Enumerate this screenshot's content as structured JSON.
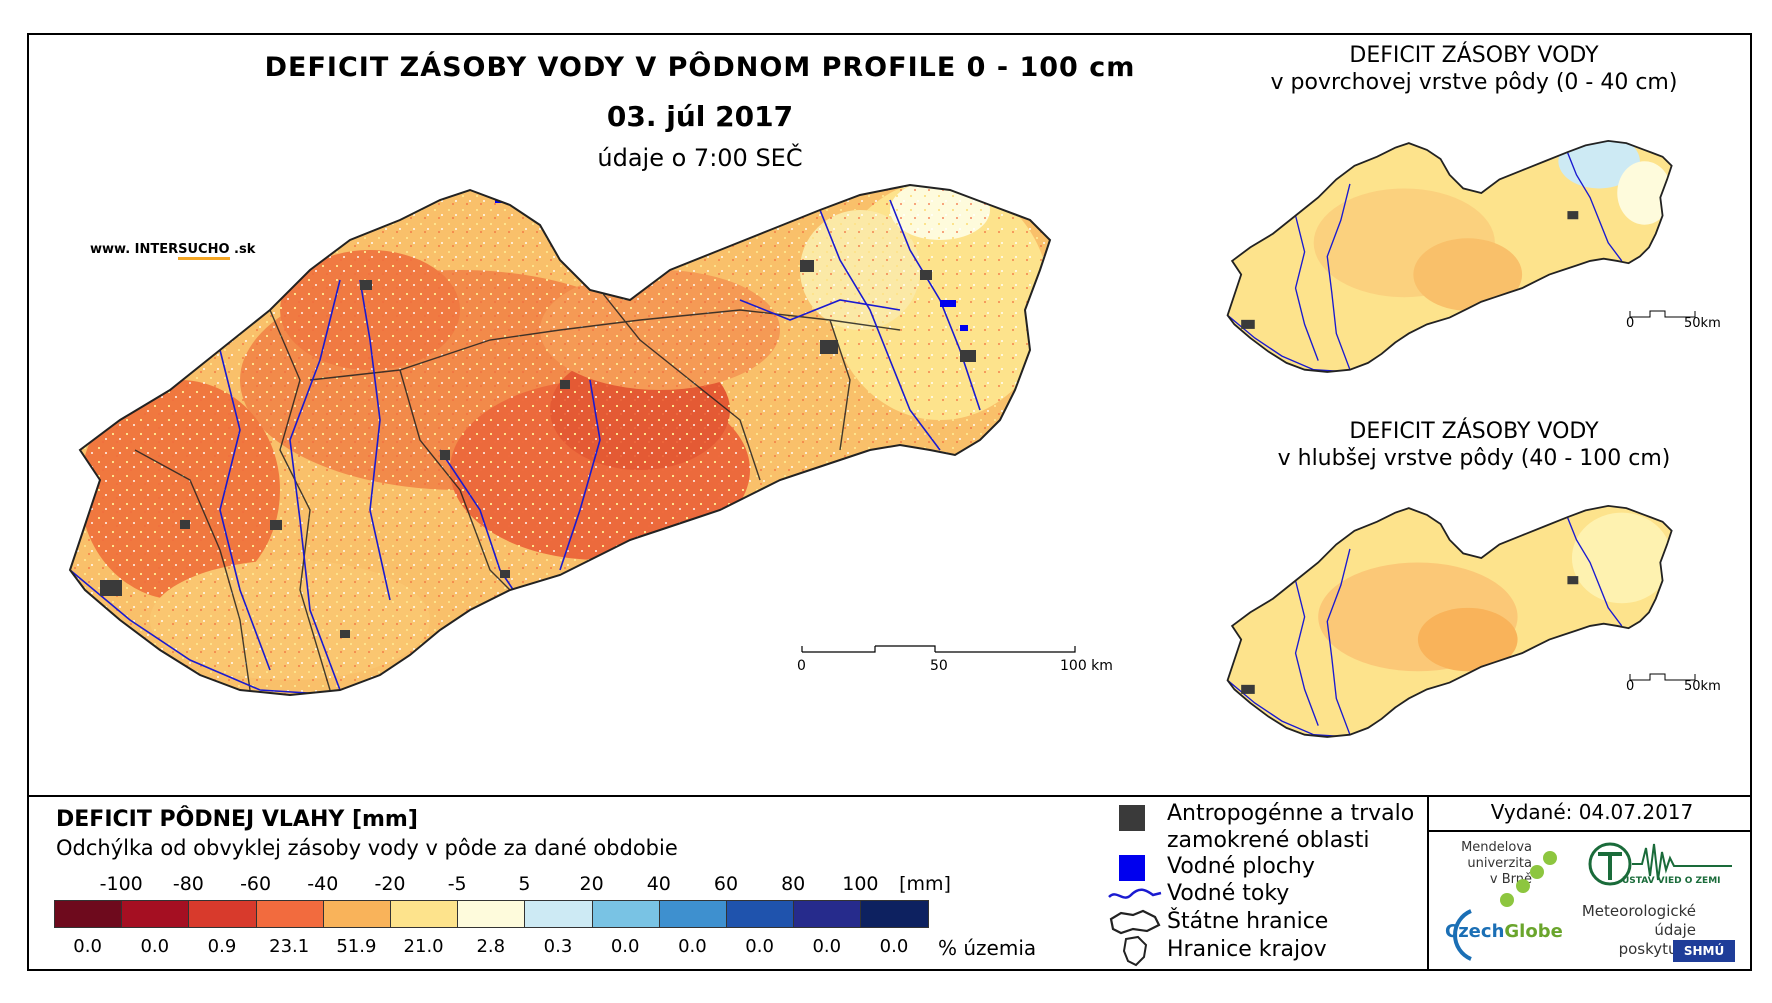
{
  "main": {
    "title": "DEFICIT ZÁSOBY VODY V PÔDNOM PROFILE 0 - 100 cm",
    "date": "03. júl 2017",
    "time_note": "údaje o 7:00 SEČ",
    "website": {
      "prefix": "www. INTER",
      "accent": "SUCHO",
      "suffix": " .sk"
    },
    "scale": {
      "ticks": [
        "0",
        "50",
        "100 km"
      ]
    }
  },
  "inset_top": {
    "title_line1": "DEFICIT ZÁSOBY VODY",
    "title_line2": "v povrchovej vrstve pôdy (0 - 40 cm)",
    "scale": {
      "ticks": [
        "0",
        "50km"
      ]
    }
  },
  "inset_bottom": {
    "title_line1": "DEFICIT ZÁSOBY VODY",
    "title_line2": "v hlubšej vrstve pôdy (40 - 100 cm)",
    "scale": {
      "ticks": [
        "0",
        "50km"
      ]
    }
  },
  "legend": {
    "title": "DEFICIT PÔDNEJ VLAHY [mm]",
    "subtitle": "Odchýlka od obvyklej zásoby vody v pôde za dané obdobie",
    "class_labels": [
      "-100",
      "-80",
      "-60",
      "-40",
      "-20",
      "-5",
      "5",
      "20",
      "40",
      "60",
      "80",
      "100"
    ],
    "unit": "[mm]",
    "colors": [
      "#6e0a1d",
      "#a50f22",
      "#d83a2c",
      "#f26b3e",
      "#f9b35a",
      "#fde38c",
      "#fefbdc",
      "#cdeaf4",
      "#79c3e4",
      "#3e90cf",
      "#1f53ad",
      "#262b8c",
      "#0d2160"
    ],
    "percentages": [
      "0.0",
      "0.0",
      "0.9",
      "23.1",
      "51.9",
      "21.0",
      "2.8",
      "0.3",
      "0.0",
      "0.0",
      "0.0",
      "0.0",
      "0.0"
    ],
    "pct_unit": "% územia"
  },
  "symbols": {
    "anthropogenic_line1": "Antropogénne a trvalo",
    "anthropogenic_line2": "zamokrené oblasti",
    "water_bodies": "Vodné plochy",
    "water_streams": "Vodné toky",
    "state_border": "Štátne hranice",
    "region_border": "Hranice krajov",
    "colors": {
      "anthropogenic": "#3a3a3a",
      "water_body": "#0000ee",
      "stream": "#1a1ad0"
    }
  },
  "footer": {
    "issued": "Vydané: 04.07.2017",
    "mendel": [
      "Mendelova",
      "univerzita",
      "v Brně"
    ],
    "czechglobe": {
      "a": "Czech",
      "b": "Globe"
    },
    "ustav": "ÚSTAV VIED O ZEMI",
    "met_provider": [
      "Meteorologické",
      "údaje",
      "poskytuje:"
    ],
    "shmu": "SHMÚ"
  }
}
